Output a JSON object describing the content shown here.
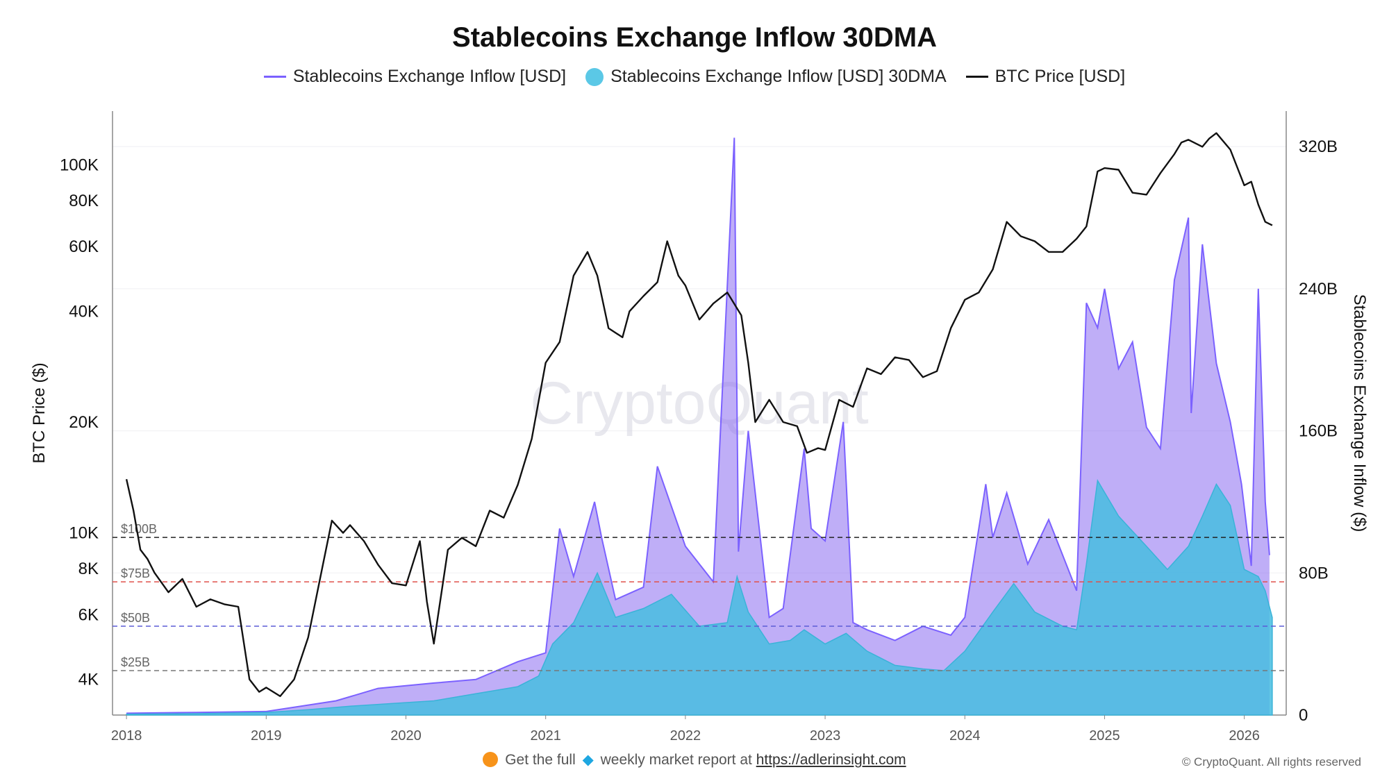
{
  "chart_data": {
    "type": "area",
    "title": "Stablecoins Exchange Inflow 30DMA",
    "legend": [
      {
        "label": "Stablecoins Exchange Inflow [USD]",
        "color": "#7b61ff",
        "style": "line"
      },
      {
        "label": "Stablecoins Exchange Inflow [USD] 30DMA",
        "color": "#5bc8e6",
        "style": "dot"
      },
      {
        "label": "BTC Price [USD]",
        "color": "#111111",
        "style": "line"
      }
    ],
    "legend_placement": "top-center",
    "ylabel_left": "BTC Price ($)",
    "ylabel_right": "Stablecoins Exchange Inflow ($)",
    "y_left_scale": "log",
    "y_left_ticks": [
      {
        "label": "4K",
        "value": 4000
      },
      {
        "label": "6K",
        "value": 6000
      },
      {
        "label": "8K",
        "value": 8000
      },
      {
        "label": "10K",
        "value": 10000
      },
      {
        "label": "20K",
        "value": 20000
      },
      {
        "label": "40K",
        "value": 40000
      },
      {
        "label": "60K",
        "value": 60000
      },
      {
        "label": "80K",
        "value": 80000
      },
      {
        "label": "100K",
        "value": 100000
      }
    ],
    "y_left_range": [
      3200,
      140000
    ],
    "y_right_ticks": [
      {
        "label": "0",
        "value": 0
      },
      {
        "label": "80B",
        "value": 80
      },
      {
        "label": "160B",
        "value": 160
      },
      {
        "label": "240B",
        "value": 240
      },
      {
        "label": "320B",
        "value": 320
      }
    ],
    "y_right_range": [
      0,
      340
    ],
    "x_ticks": [
      "2018",
      "2019",
      "2020",
      "2021",
      "2022",
      "2023",
      "2024",
      "2025",
      "2026"
    ],
    "x_range": [
      2017.9,
      2026.3
    ],
    "grid": true,
    "reference_lines": [
      {
        "label": "$100B",
        "value": 100,
        "color": "#222222"
      },
      {
        "label": "$75B",
        "value": 75,
        "color": "#e0504a"
      },
      {
        "label": "$50B",
        "value": 50,
        "color": "#5b5bd6"
      },
      {
        "label": "$25B",
        "value": 25,
        "color": "#777777"
      }
    ],
    "series": [
      {
        "name": "BTC Price [USD]",
        "axis": "left",
        "x": [
          2018.0,
          2018.05,
          2018.1,
          2018.15,
          2018.2,
          2018.3,
          2018.4,
          2018.5,
          2018.6,
          2018.7,
          2018.8,
          2018.88,
          2018.95,
          2019.0,
          2019.1,
          2019.2,
          2019.3,
          2019.4,
          2019.47,
          2019.55,
          2019.6,
          2019.7,
          2019.8,
          2019.9,
          2020.0,
          2020.1,
          2020.15,
          2020.2,
          2020.3,
          2020.4,
          2020.5,
          2020.6,
          2020.7,
          2020.8,
          2020.9,
          2021.0,
          2021.1,
          2021.2,
          2021.3,
          2021.37,
          2021.45,
          2021.55,
          2021.6,
          2021.7,
          2021.8,
          2021.87,
          2021.95,
          2022.0,
          2022.1,
          2022.2,
          2022.3,
          2022.4,
          2022.45,
          2022.5,
          2022.6,
          2022.7,
          2022.8,
          2022.87,
          2022.95,
          2023.0,
          2023.1,
          2023.2,
          2023.3,
          2023.4,
          2023.5,
          2023.6,
          2023.7,
          2023.8,
          2023.9,
          2024.0,
          2024.1,
          2024.2,
          2024.3,
          2024.4,
          2024.5,
          2024.6,
          2024.7,
          2024.8,
          2024.87,
          2024.95,
          2025.0,
          2025.1,
          2025.2,
          2025.3,
          2025.4,
          2025.5,
          2025.55,
          2025.6,
          2025.7,
          2025.75,
          2025.8,
          2025.9,
          2026.0,
          2026.05,
          2026.1,
          2026.15,
          2026.2
        ],
        "values": [
          14000,
          11500,
          9000,
          8500,
          7800,
          6900,
          7500,
          6300,
          6600,
          6400,
          6300,
          4000,
          3700,
          3800,
          3600,
          4000,
          5200,
          8000,
          10800,
          10000,
          10500,
          9500,
          8200,
          7300,
          7200,
          9500,
          6500,
          5000,
          9000,
          9700,
          9200,
          11500,
          11000,
          13500,
          18000,
          29000,
          33000,
          50000,
          58000,
          50000,
          36000,
          34000,
          40000,
          44000,
          48000,
          62000,
          50000,
          47000,
          38000,
          42000,
          45000,
          39000,
          29000,
          20000,
          23000,
          20000,
          19500,
          16500,
          17000,
          16800,
          23000,
          22000,
          28000,
          27000,
          30000,
          29500,
          26500,
          27500,
          36000,
          43000,
          45000,
          52000,
          70000,
          64000,
          62000,
          58000,
          58000,
          63000,
          68000,
          96000,
          98000,
          97000,
          84000,
          83000,
          95000,
          107000,
          115000,
          117000,
          112000,
          118000,
          122000,
          110000,
          88000,
          90000,
          78000,
          70000,
          68500
        ]
      },
      {
        "name": "Stablecoins Exchange Inflow [USD] 30DMA",
        "axis": "right",
        "x": [
          2018.0,
          2018.5,
          2019.0,
          2019.3,
          2019.6,
          2019.9,
          2020.2,
          2020.5,
          2020.8,
          2020.95,
          2021.05,
          2021.2,
          2021.37,
          2021.5,
          2021.7,
          2021.9,
          2022.1,
          2022.3,
          2022.37,
          2022.45,
          2022.6,
          2022.75,
          2022.85,
          2023.0,
          2023.15,
          2023.3,
          2023.5,
          2023.7,
          2023.85,
          2024.0,
          2024.2,
          2024.35,
          2024.5,
          2024.7,
          2024.8,
          2024.87,
          2024.95,
          2025.1,
          2025.3,
          2025.45,
          2025.6,
          2025.7,
          2025.8,
          2025.9,
          2026.0,
          2026.1,
          2026.15,
          2026.2
        ],
        "values": [
          0.5,
          0.8,
          1.5,
          3,
          5,
          6.5,
          8,
          12,
          16,
          22,
          40,
          52,
          80,
          55,
          60,
          68,
          50,
          52,
          78,
          58,
          40,
          42,
          48,
          40,
          46,
          36,
          28,
          26,
          25,
          36,
          58,
          74,
          58,
          50,
          48,
          85,
          132,
          112,
          95,
          82,
          95,
          112,
          130,
          118,
          82,
          78,
          70,
          55
        ]
      },
      {
        "name": "Stablecoins Exchange Inflow [USD]",
        "axis": "right",
        "x": [
          2018.0,
          2018.5,
          2019.0,
          2019.5,
          2019.8,
          2020.2,
          2020.5,
          2020.8,
          2021.0,
          2021.1,
          2021.2,
          2021.35,
          2021.4,
          2021.5,
          2021.7,
          2021.8,
          2022.0,
          2022.2,
          2022.35,
          2022.38,
          2022.45,
          2022.6,
          2022.7,
          2022.85,
          2022.9,
          2023.0,
          2023.13,
          2023.2,
          2023.3,
          2023.5,
          2023.7,
          2023.9,
          2024.0,
          2024.15,
          2024.2,
          2024.3,
          2024.45,
          2024.6,
          2024.8,
          2024.87,
          2024.95,
          2025.0,
          2025.1,
          2025.2,
          2025.3,
          2025.4,
          2025.5,
          2025.6,
          2025.62,
          2025.7,
          2025.8,
          2025.9,
          2025.98,
          2026.05,
          2026.1,
          2026.15,
          2026.18
        ],
        "values": [
          1,
          1.5,
          2,
          8,
          15,
          18,
          20,
          30,
          35,
          105,
          78,
          120,
          100,
          65,
          72,
          140,
          95,
          75,
          325,
          92,
          160,
          55,
          60,
          150,
          105,
          98,
          165,
          52,
          48,
          42,
          50,
          45,
          55,
          130,
          100,
          125,
          85,
          110,
          70,
          232,
          218,
          240,
          195,
          210,
          162,
          150,
          245,
          280,
          170,
          265,
          198,
          165,
          130,
          84,
          240,
          120,
          90
        ]
      }
    ],
    "watermark": "CryptoQuant",
    "footer": {
      "prefix": "Get the full",
      "middle": "weekly market report at",
      "link": "https://adlerinsight.com"
    },
    "copyright": "© CryptoQuant. All rights reserved"
  }
}
